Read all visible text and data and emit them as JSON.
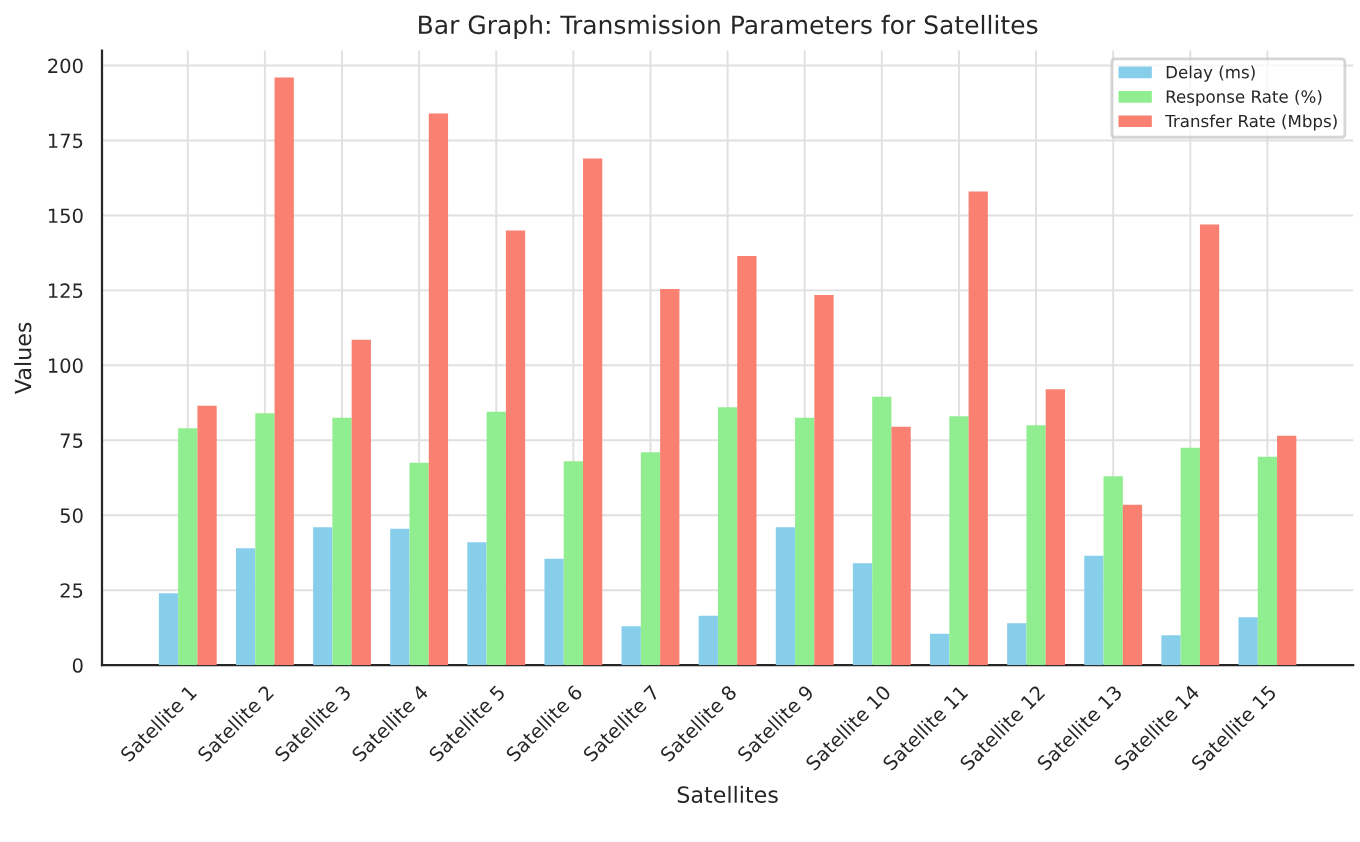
{
  "chart_data": {
    "type": "bar",
    "title": "Bar Graph: Transmission Parameters for Satellites",
    "xlabel": "Satellites",
    "ylabel": "Values",
    "categories": [
      "Satellite 1",
      "Satellite 2",
      "Satellite 3",
      "Satellite 4",
      "Satellite 5",
      "Satellite 6",
      "Satellite 7",
      "Satellite 8",
      "Satellite 9",
      "Satellite 10",
      "Satellite 11",
      "Satellite 12",
      "Satellite 13",
      "Satellite 14",
      "Satellite 15"
    ],
    "series": [
      {
        "name": "Delay (ms)",
        "color": "#87ceeb",
        "values": [
          24,
          39,
          46,
          45.5,
          41,
          35.5,
          13,
          16.5,
          46,
          34,
          10.5,
          14,
          36.5,
          10,
          16
        ]
      },
      {
        "name": "Response Rate (%)",
        "color": "#90ee90",
        "values": [
          79,
          84,
          82.5,
          67.5,
          84.5,
          68,
          71,
          86,
          82.5,
          89.5,
          83,
          80,
          63,
          72.5,
          69.5
        ]
      },
      {
        "name": "Transfer Rate (Mbps)",
        "color": "#fa8072",
        "values": [
          86.5,
          196,
          108.5,
          184,
          145,
          169,
          125.5,
          136.5,
          123.5,
          79.5,
          158,
          92,
          53.5,
          147,
          76.5
        ]
      }
    ],
    "ylim": [
      0,
      205
    ],
    "yticks": [
      0,
      25,
      50,
      75,
      100,
      125,
      150,
      175,
      200
    ],
    "grid": true,
    "legend": "top right"
  }
}
